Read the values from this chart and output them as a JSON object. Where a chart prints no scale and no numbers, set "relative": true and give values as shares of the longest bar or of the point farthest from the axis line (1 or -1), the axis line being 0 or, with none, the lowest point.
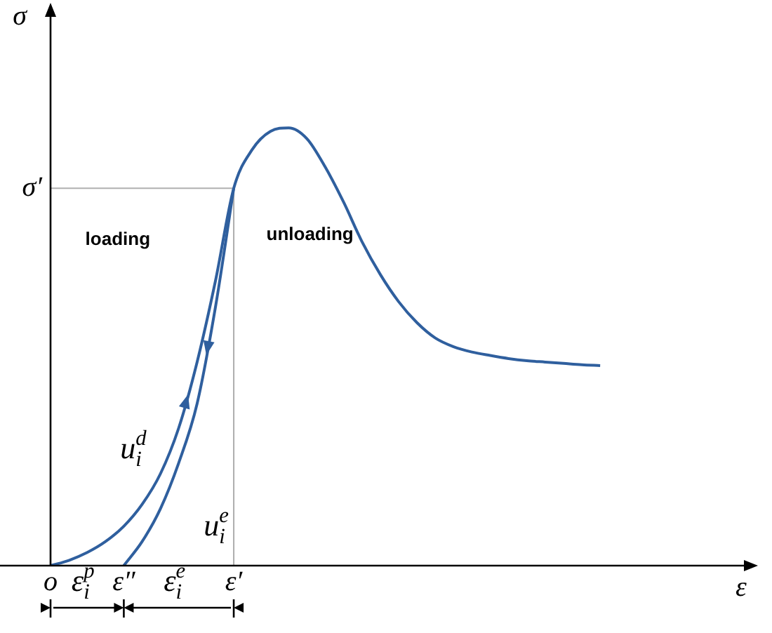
{
  "chart_data": {
    "type": "line",
    "relative": true,
    "xlabel": "ε",
    "ylabel": "σ",
    "categories": [
      "o",
      null,
      null,
      null,
      "ε″",
      null,
      null,
      null,
      null,
      null,
      "ε′",
      null,
      null,
      null,
      null,
      null,
      null,
      null,
      null,
      null,
      null,
      null,
      null,
      null,
      null,
      null,
      null,
      null,
      null,
      null,
      null,
      null,
      null,
      null,
      null,
      null,
      null,
      null,
      null
    ],
    "series": [
      {
        "color": "#2f5f9e",
        "values": [
          0,
          0.012,
          0.03,
          0.055,
          0.09,
          0.14,
          0.21,
          0.315,
          0.465,
          0.65,
          0.862,
          0.95,
          0.992,
          1,
          0.975,
          0.91,
          0.83,
          0.74,
          0.665,
          0.603,
          0.555,
          0.52,
          0.5,
          0.488,
          0.48,
          0.473,
          0.468,
          0.465,
          0.462,
          0.459,
          0.457,
          null,
          null,
          null,
          null,
          null,
          null,
          null,
          null
        ]
      },
      {
        "color": "#2f5f9e",
        "values": [
          null,
          null,
          null,
          null,
          0,
          0.055,
          0.13,
          0.235,
          0.37,
          0.59,
          0.862,
          null,
          null,
          null,
          null,
          null,
          null,
          null,
          null,
          null,
          null,
          null,
          null,
          null,
          null,
          null,
          null,
          null,
          null,
          null,
          null,
          null,
          null,
          null,
          null,
          null,
          null,
          null,
          null
        ]
      }
    ],
    "ref_lines": [
      {
        "axis": "y",
        "value": 0.862,
        "label": "σ′",
        "color": "#b0b0b0"
      },
      {
        "axis": "x",
        "value": "ε′",
        "color": "#b0b0b0"
      }
    ],
    "annotations": [
      "loading",
      "unloading",
      "u$_{i}$$^{d}$",
      "u$_{i}$$^{e}$",
      "ε$_{i}$$^{p}$",
      "ε$_{i}$$^{e}$"
    ],
    "legend": false,
    "marker": "none",
    "line_style": "solid"
  }
}
